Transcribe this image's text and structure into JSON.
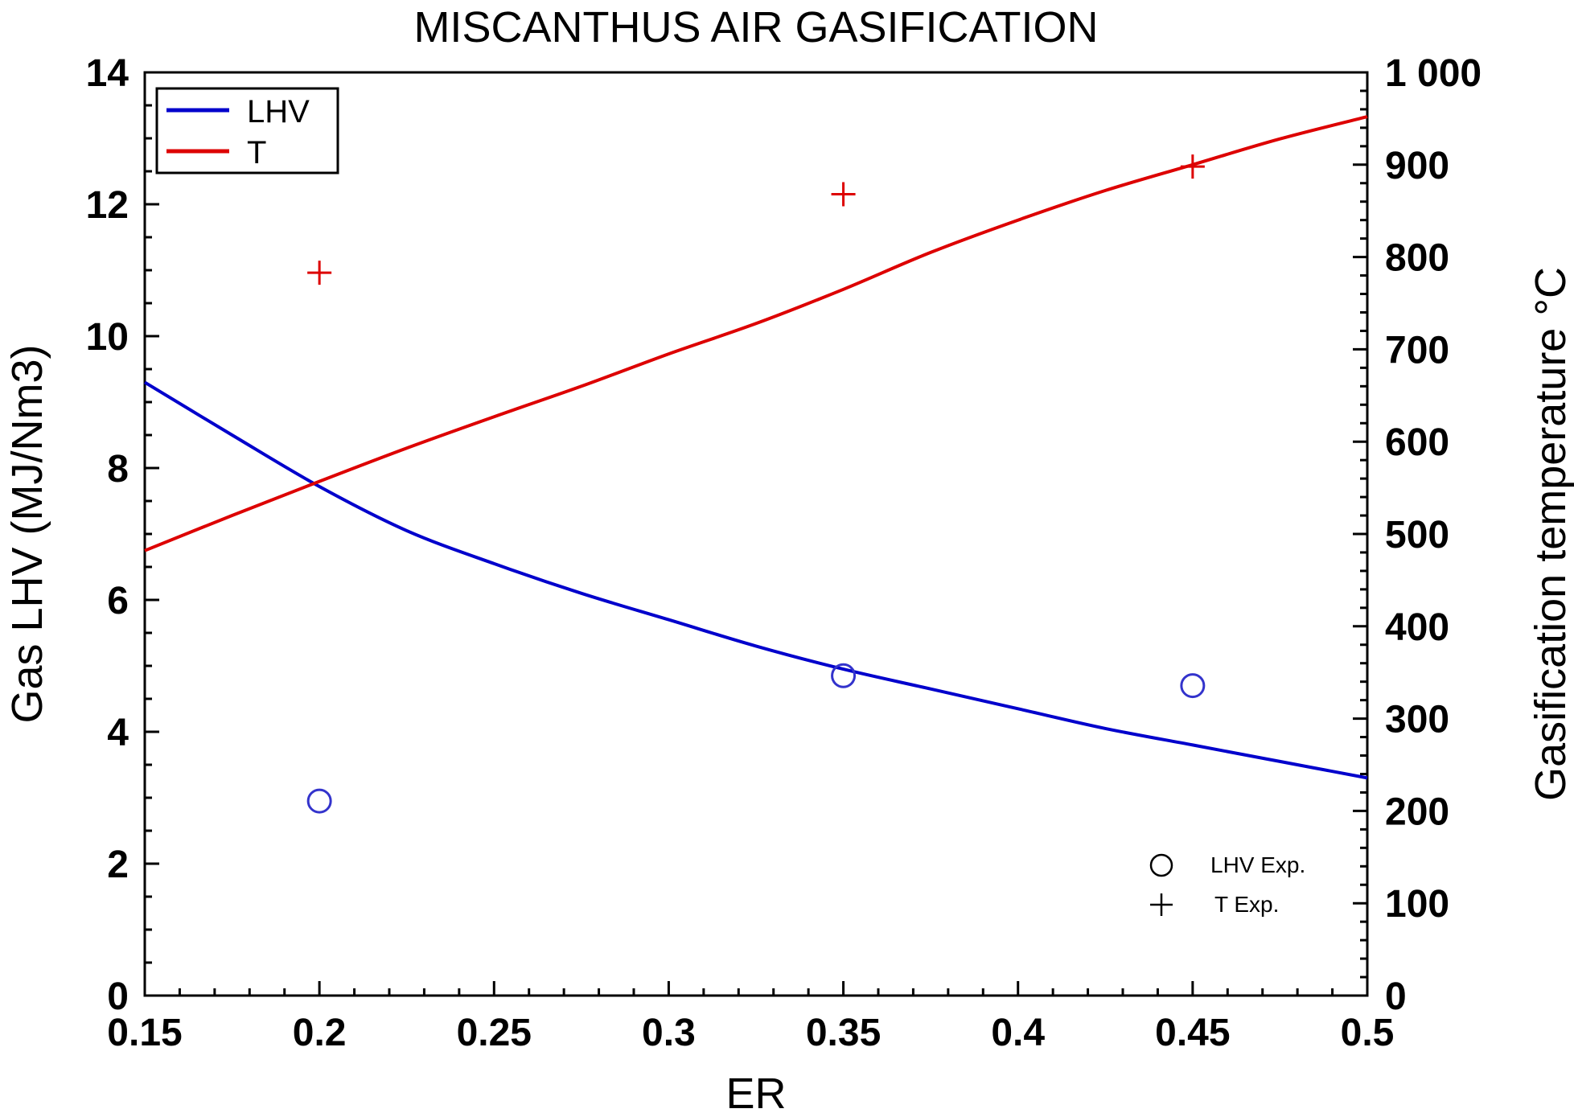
{
  "chart_data": {
    "type": "line",
    "title": "MISCANTHUS AIR GASIFICATION",
    "xlabel": "ER",
    "ylabel": "Gas LHV (MJ/Nm3)",
    "y2label": "Gasification temperature °C",
    "xlim": [
      0.15,
      0.5
    ],
    "ylim": [
      0,
      14
    ],
    "y2lim": [
      0,
      1000
    ],
    "x_ticks": [
      "0.15",
      "0.2",
      "0.25",
      "0.3",
      "0.35",
      "0.4",
      "0.45",
      "0.5"
    ],
    "y_ticks": [
      "0",
      "2",
      "4",
      "6",
      "8",
      "10",
      "12",
      "14"
    ],
    "y2_ticks": [
      "0",
      "100",
      "200",
      "300",
      "400",
      "500",
      "600",
      "700",
      "800",
      "900",
      "1 000"
    ],
    "series": [
      {
        "name": "LHV",
        "axis": "left",
        "color": "#0000cc",
        "x": [
          0.15,
          0.175,
          0.2,
          0.225,
          0.25,
          0.275,
          0.3,
          0.325,
          0.35,
          0.375,
          0.4,
          0.425,
          0.45,
          0.475,
          0.5
        ],
        "y": [
          9.3,
          8.5,
          7.72,
          7.05,
          6.55,
          6.1,
          5.7,
          5.3,
          4.95,
          4.65,
          4.35,
          4.05,
          3.8,
          3.55,
          3.3
        ]
      },
      {
        "name": "T",
        "axis": "right",
        "color": "#dd0000",
        "x": [
          0.15,
          0.175,
          0.2,
          0.225,
          0.25,
          0.275,
          0.3,
          0.325,
          0.35,
          0.375,
          0.4,
          0.425,
          0.45,
          0.475,
          0.5
        ],
        "y": [
          482,
          520,
          557,
          593,
          627,
          660,
          695,
          728,
          765,
          805,
          840,
          872,
          900,
          928,
          952
        ]
      }
    ],
    "scatter_series": [
      {
        "name": "LHV Exp.",
        "axis": "left",
        "marker": "circle",
        "color": "#3333cc",
        "x": [
          0.2,
          0.35,
          0.45
        ],
        "y": [
          2.95,
          4.85,
          4.7
        ]
      },
      {
        "name": "T Exp.",
        "axis": "right",
        "marker": "plus",
        "color": "#dd0000",
        "x": [
          0.2,
          0.35,
          0.45
        ],
        "y": [
          783,
          868,
          898
        ]
      }
    ],
    "legend": {
      "position": "top-left",
      "items": [
        "LHV",
        "T"
      ]
    },
    "legend2": {
      "position": "bottom-right",
      "items": [
        "LHV Exp.",
        "T Exp."
      ]
    }
  }
}
